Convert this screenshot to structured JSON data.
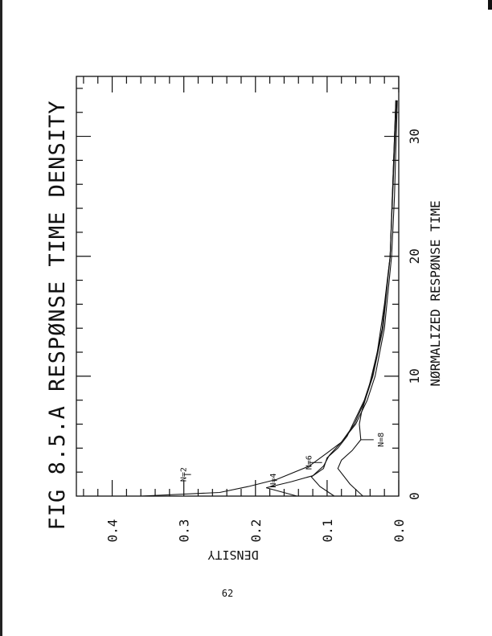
{
  "page_number": "62",
  "chart_data": {
    "type": "line",
    "title": "FIG 8.5.A RESPØNSE TIME DENSITY",
    "xlabel": "NØRMALIZED RESPØNSE TIME",
    "ylabel": "DENSITY",
    "orientation": "rotated 90° counter-clockwise on page",
    "xlim": [
      0,
      35
    ],
    "ylim": [
      0,
      0.45
    ],
    "xticks": [
      "0",
      "10",
      "20",
      "30"
    ],
    "xtick_values": [
      0,
      10,
      20,
      30
    ],
    "yticks": [
      "0.0",
      "0.1",
      "0.2",
      "0.3",
      "0.4"
    ],
    "ytick_values": [
      0,
      0.1,
      0.2,
      0.3,
      0.4
    ],
    "grid": false,
    "legend": "inline labels",
    "series": [
      {
        "name": "N=2",
        "points": [
          [
            0,
            0.36
          ],
          [
            0.3,
            0.25
          ],
          [
            0.8,
            0.21
          ],
          [
            1.4,
            0.17
          ],
          [
            2.5,
            0.125
          ],
          [
            3.6,
            0.1
          ],
          [
            4.5,
            0.08
          ],
          [
            6,
            0.06
          ],
          [
            8,
            0.044
          ],
          [
            10,
            0.033
          ],
          [
            14,
            0.02
          ],
          [
            20,
            0.01
          ],
          [
            25,
            0.006
          ],
          [
            33,
            0.002
          ]
        ]
      },
      {
        "name": "N=4",
        "points": [
          [
            0,
            0.142
          ],
          [
            0.7,
            0.185
          ],
          [
            1.2,
            0.15
          ],
          [
            1.7,
            0.12
          ],
          [
            2.5,
            0.105
          ],
          [
            3.4,
            0.097
          ],
          [
            4.5,
            0.08
          ],
          [
            6,
            0.062
          ],
          [
            8,
            0.047
          ],
          [
            10,
            0.036
          ],
          [
            14,
            0.022
          ],
          [
            20,
            0.012
          ],
          [
            33,
            0.004
          ]
        ]
      },
      {
        "name": "N=6",
        "points": [
          [
            0,
            0.09
          ],
          [
            0.8,
            0.11
          ],
          [
            1.6,
            0.122
          ],
          [
            2.3,
            0.105
          ],
          [
            3.2,
            0.1
          ],
          [
            4,
            0.085
          ],
          [
            5,
            0.072
          ],
          [
            6.5,
            0.06
          ],
          [
            8,
            0.048
          ],
          [
            10,
            0.037
          ],
          [
            14,
            0.023
          ],
          [
            20,
            0.012
          ],
          [
            33,
            0.003
          ]
        ]
      },
      {
        "name": "N=8",
        "points": [
          [
            0,
            0.05
          ],
          [
            1,
            0.068
          ],
          [
            2.3,
            0.085
          ],
          [
            3,
            0.08
          ],
          [
            3.8,
            0.065
          ],
          [
            4.7,
            0.053
          ],
          [
            6,
            0.055
          ],
          [
            7,
            0.052
          ],
          [
            9,
            0.042
          ],
          [
            12,
            0.03
          ],
          [
            16,
            0.02
          ],
          [
            20,
            0.012
          ],
          [
            33,
            0.004
          ]
        ]
      }
    ]
  }
}
